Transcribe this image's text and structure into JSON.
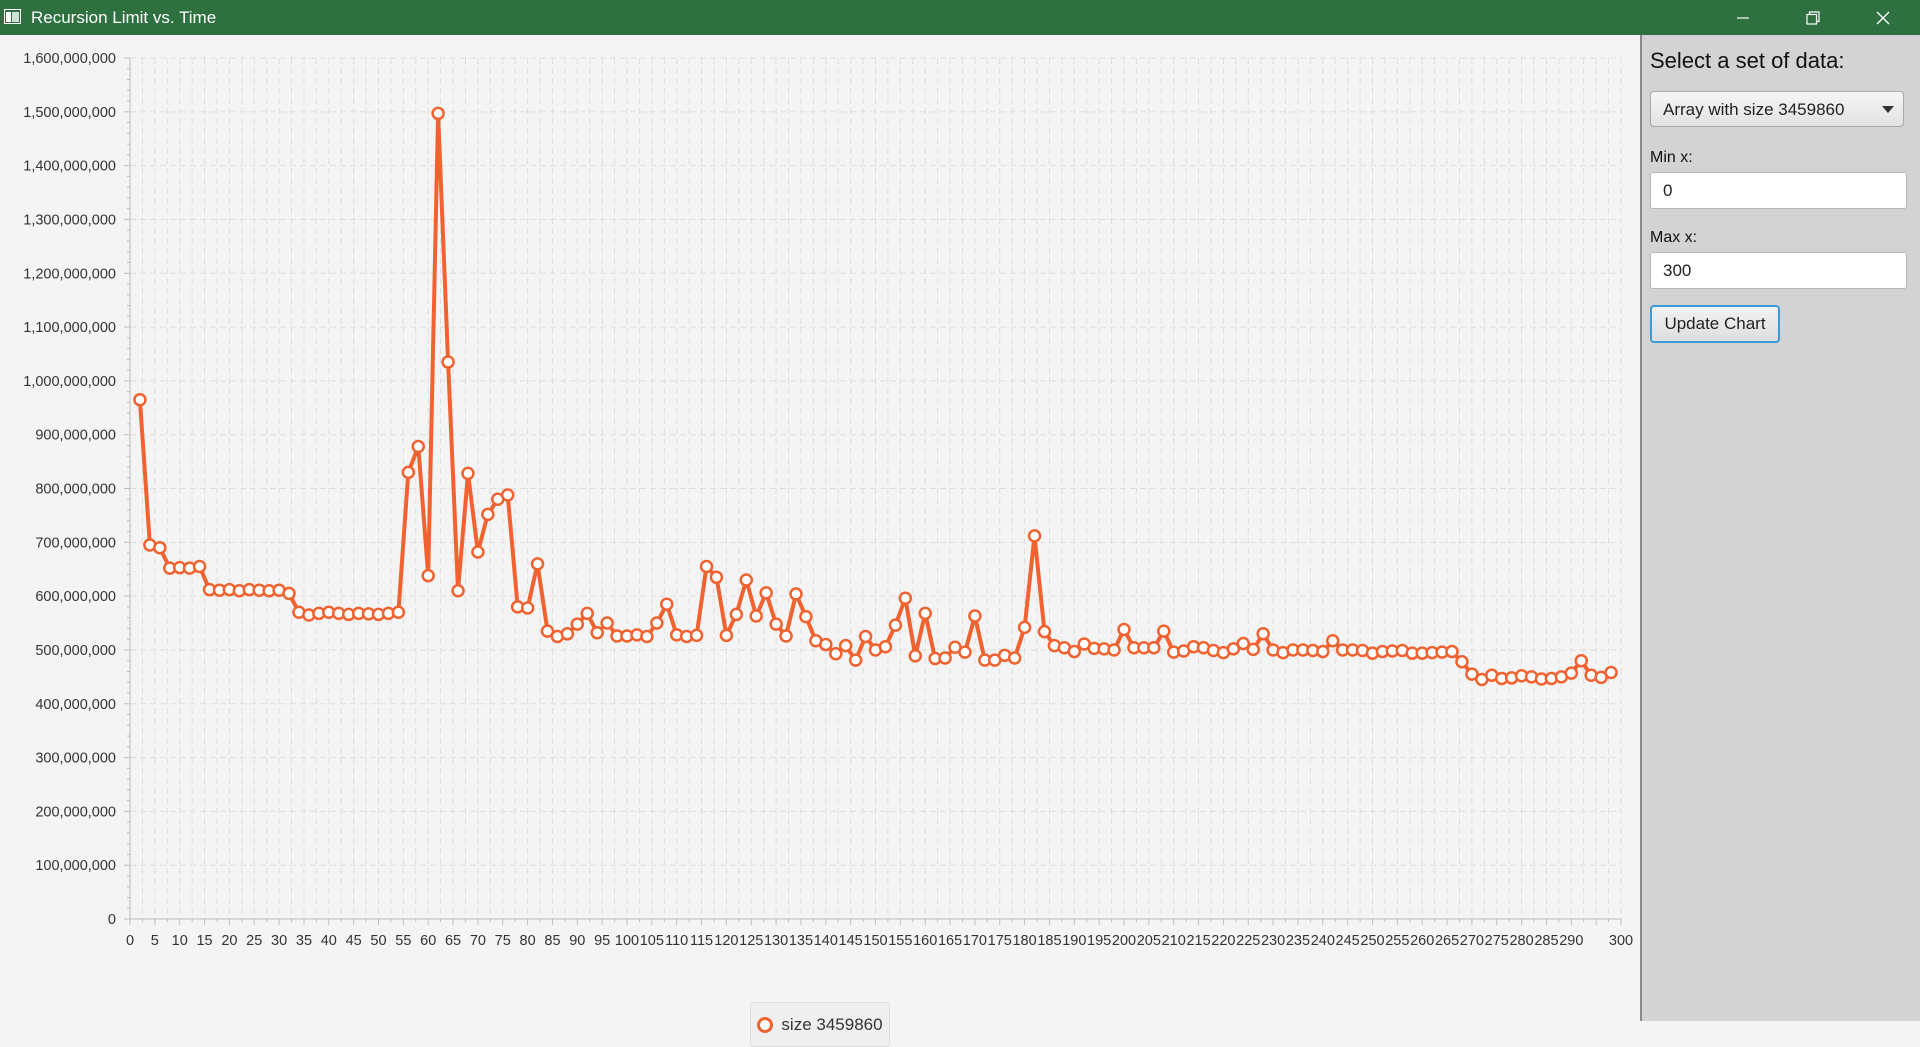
{
  "window": {
    "title": "Recursion Limit vs. Time",
    "titlebar_color": "#2e7040",
    "controls": [
      "minimize-icon",
      "restore-icon",
      "close-icon"
    ]
  },
  "panel": {
    "heading": "Select a set of data:",
    "dataset_selected": "Array with size 3459860",
    "min_x_label": "Min x:",
    "min_x_value": "0",
    "max_x_label": "Max x:",
    "max_x_value": "300",
    "update_button": "Update Chart"
  },
  "chart_data": {
    "type": "line",
    "title": "",
    "xlabel": "",
    "ylabel": "",
    "xlim": [
      0,
      300
    ],
    "ylim": [
      0,
      1600000000
    ],
    "x_ticks": [
      0,
      5,
      10,
      15,
      20,
      25,
      30,
      35,
      40,
      45,
      50,
      55,
      60,
      65,
      70,
      75,
      80,
      85,
      90,
      95,
      100,
      105,
      110,
      115,
      120,
      125,
      130,
      135,
      140,
      145,
      150,
      155,
      160,
      165,
      170,
      175,
      180,
      185,
      190,
      195,
      200,
      205,
      210,
      215,
      220,
      225,
      230,
      235,
      240,
      245,
      250,
      255,
      260,
      265,
      270,
      275,
      280,
      285,
      290,
      300
    ],
    "y_ticks": [
      "0",
      "100,000,000",
      "200,000,000",
      "300,000,000",
      "400,000,000",
      "500,000,000",
      "600,000,000",
      "700,000,000",
      "800,000,000",
      "900,000,000",
      "1,000,000,000",
      "1,100,000,000",
      "1,200,000,000",
      "1,300,000,000",
      "1,400,000,000",
      "1,500,000,000",
      "1,600,000,000"
    ],
    "grid": true,
    "legend": "bottom-center",
    "series_color": "#f06331",
    "series": [
      {
        "name": "size 3459860",
        "x": [
          2,
          4,
          6,
          8,
          10,
          12,
          14,
          16,
          18,
          20,
          22,
          24,
          26,
          28,
          30,
          32,
          34,
          36,
          38,
          40,
          42,
          44,
          46,
          48,
          50,
          52,
          54,
          56,
          58,
          60,
          62,
          64,
          66,
          68,
          70,
          72,
          74,
          76,
          78,
          80,
          82,
          84,
          86,
          88,
          90,
          92,
          94,
          96,
          98,
          100,
          102,
          104,
          106,
          108,
          110,
          112,
          114,
          116,
          118,
          120,
          122,
          124,
          126,
          128,
          130,
          132,
          134,
          136,
          138,
          140,
          142,
          144,
          146,
          148,
          150,
          152,
          154,
          156,
          158,
          160,
          162,
          164,
          166,
          168,
          170,
          172,
          174,
          176,
          178,
          180,
          182,
          184,
          186,
          188,
          190,
          192,
          194,
          196,
          198,
          200,
          202,
          204,
          206,
          208,
          210,
          212,
          214,
          216,
          218,
          220,
          222,
          224,
          226,
          228,
          230,
          232,
          234,
          236,
          238,
          240,
          242,
          244,
          246,
          248,
          250,
          252,
          254,
          256,
          258,
          260,
          262,
          264,
          266,
          268,
          270,
          272,
          274,
          276,
          278,
          280,
          282,
          284,
          286,
          288,
          290,
          292,
          294,
          296,
          298
        ],
        "y": [
          965000000,
          695000000,
          690000000,
          652000000,
          653000000,
          652000000,
          655000000,
          612000000,
          611000000,
          612000000,
          610000000,
          612000000,
          611000000,
          610000000,
          611000000,
          605000000,
          570000000,
          565000000,
          568000000,
          570000000,
          568000000,
          566000000,
          568000000,
          567000000,
          566000000,
          568000000,
          570000000,
          830000000,
          878000000,
          638000000,
          1497000000,
          1035000000,
          610000000,
          828000000,
          682000000,
          752000000,
          780000000,
          788000000,
          580000000,
          578000000,
          660000000,
          535000000,
          525000000,
          530000000,
          548000000,
          568000000,
          532000000,
          550000000,
          526000000,
          526000000,
          528000000,
          525000000,
          550000000,
          585000000,
          528000000,
          525000000,
          527000000,
          655000000,
          635000000,
          527000000,
          566000000,
          630000000,
          563000000,
          606000000,
          548000000,
          526000000,
          604000000,
          562000000,
          517000000,
          510000000,
          493000000,
          508000000,
          481000000,
          525000000,
          500000000,
          506000000,
          546000000,
          596000000,
          489000000,
          568000000,
          484000000,
          485000000,
          505000000,
          496000000,
          563000000,
          481000000,
          481000000,
          490000000,
          485000000,
          542000000,
          712000000,
          534000000,
          508000000,
          504000000,
          497000000,
          511000000,
          503000000,
          502000000,
          500000000,
          538000000,
          504000000,
          504000000,
          504000000,
          535000000,
          496000000,
          498000000,
          506000000,
          504000000,
          499000000,
          495000000,
          502000000,
          512000000,
          501000000,
          530000000,
          500000000,
          495000000,
          500000000,
          500000000,
          499000000,
          497000000,
          517000000,
          500000000,
          500000000,
          499000000,
          494000000,
          497000000,
          498000000,
          499000000,
          494000000,
          494000000,
          495000000,
          496000000,
          497000000,
          478000000,
          455000000,
          445000000,
          453000000,
          447000000,
          448000000,
          452000000,
          450000000,
          446000000,
          447000000,
          450000000,
          457000000,
          480000000,
          453000000,
          449000000,
          458000000
        ]
      }
    ]
  }
}
